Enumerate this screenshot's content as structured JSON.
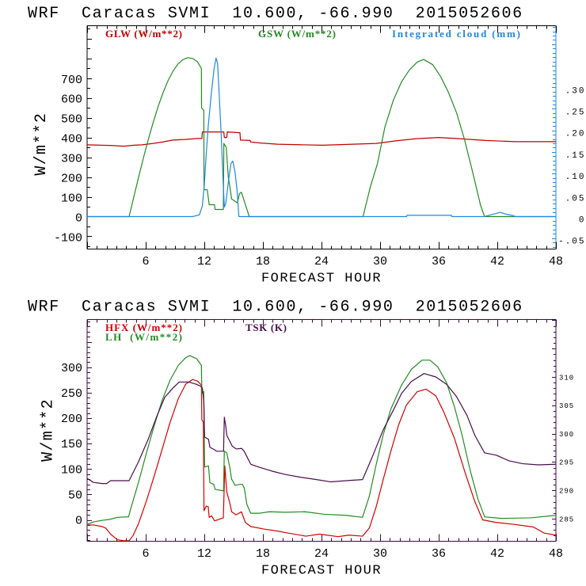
{
  "figure": {
    "background": "#ffffff"
  },
  "chart_data": [
    {
      "type": "line",
      "title": "WRF  Caracas SVMI  10.600, -66.990  2015052606",
      "xlabel": "FORECAST HOUR",
      "ylabel": "W/m**2",
      "xlim": [
        0,
        48
      ],
      "xticks": [
        6,
        12,
        18,
        24,
        30,
        36,
        42,
        48
      ],
      "xticklabels": [
        "6",
        "12",
        "18",
        "24",
        "30",
        "36",
        "42",
        "48"
      ],
      "xmajor": 6,
      "xminor": 1,
      "ylim": [
        -163.5,
        965.5
      ],
      "yticks": [
        -100,
        0,
        100,
        200,
        300,
        400,
        500,
        600,
        700
      ],
      "yticklabels": [
        "-100",
        "0",
        "100",
        "200",
        "300",
        "400",
        "500",
        "600",
        "700"
      ],
      "ymajor": 100,
      "yminor": 50,
      "y2lim": [
        -0.075,
        0.443
      ],
      "y2ticks": [
        -0.05,
        0,
        0.05,
        0.1,
        0.15,
        0.2,
        0.25,
        0.3
      ],
      "y2ticklabels": [
        "-.05",
        "0",
        ".05",
        ".10",
        ".15",
        ".20",
        ".25",
        ".30"
      ],
      "y2major": 0.05,
      "y2minor": 0.01,
      "grid": false,
      "legend": "top",
      "axis_color": "#000000",
      "y2_axis_color": "#1e88e5",
      "series": [
        {
          "name": "GLW (W/m**2)",
          "axis": "left",
          "color": "#bf0000",
          "x": [
            0,
            2.3,
            3.75,
            4.8,
            5.65,
            6.9,
            7.7,
            8.76,
            10.0,
            11.3,
            11.75,
            11.8,
            14.0,
            14.05,
            14.3,
            14.35,
            15.0,
            15.65,
            15.7,
            16.7,
            16.75,
            17.8,
            19.5,
            21.3,
            24.1,
            26.0,
            29.6,
            31.6,
            33.7,
            36.0,
            38.1,
            40.8,
            43.8,
            48
          ],
          "y": [
            363,
            360,
            356,
            361,
            363,
            371,
            377,
            387,
            390,
            395,
            395,
            428,
            428,
            400,
            400,
            428,
            426,
            424,
            387,
            385,
            377,
            372,
            366,
            364,
            361,
            364,
            370,
            383,
            394,
            400,
            394,
            385,
            379,
            379
          ]
        },
        {
          "name": "GSW (W/m**2)",
          "axis": "left",
          "color": "#228b22",
          "x": [
            0,
            4.3,
            4.8,
            5.3,
            5.8,
            6.3,
            6.8,
            7.3,
            7.8,
            8.3,
            8.8,
            9.3,
            9.8,
            10.3,
            10.8,
            11.3,
            11.7,
            11.72,
            11.95,
            11.97,
            12.3,
            12.5,
            13.05,
            13.1,
            13.95,
            14.0,
            14.25,
            14.45,
            14.6,
            14.8,
            15.4,
            15.6,
            15.8,
            16.6,
            28.25,
            29.0,
            29.73,
            30.5,
            31.35,
            32.2,
            33.0,
            33.8,
            34.46,
            35.4,
            36.2,
            37.0,
            37.85,
            38.65,
            39.46,
            40.3,
            40.7,
            48
          ],
          "y": [
            0,
            0,
            103,
            205,
            303,
            396,
            482,
            561,
            630,
            689,
            736,
            772,
            794,
            804,
            800,
            783,
            750,
            550,
            537,
            136,
            136,
            60,
            60,
            36,
            36,
            370,
            350,
            203,
            156,
            89,
            69,
            116,
            123,
            0,
            0,
            150,
            268,
            455,
            588,
            682,
            742,
            782,
            795,
            768,
            708,
            628,
            522,
            388,
            228,
            54,
            0,
            0
          ]
        },
        {
          "name": "Integrated cloud (mm)",
          "axis": "right",
          "color": "#1e88e5",
          "x": [
            0,
            10.8,
            11.5,
            11.8,
            12.0,
            12.2,
            12.4,
            12.7,
            13.0,
            13.2,
            13.36,
            13.5,
            13.73,
            13.92,
            14.05,
            14.2,
            14.46,
            14.73,
            14.92,
            15.14,
            15.35,
            15.54,
            32.7,
            32.75,
            37.3,
            37.35,
            40.7,
            41.3,
            42.0,
            42.3,
            42.8,
            43.7,
            43.8,
            48
          ],
          "y": [
            0,
            0,
            0.004,
            0.025,
            0.074,
            0.147,
            0.209,
            0.282,
            0.343,
            0.368,
            0.356,
            0.294,
            0.19,
            0.086,
            0.022,
            0.031,
            0.08,
            0.123,
            0.129,
            0.104,
            0.062,
            0,
            0,
            0.003,
            0.003,
            0,
            0,
            0.004,
            0.008,
            0.01,
            0.006,
            0.002,
            0,
            0
          ]
        }
      ]
    },
    {
      "type": "line",
      "title": "WRF  Caracas SVMI  10.600, -66.990  2015052606",
      "xlabel": "FORECAST HOUR",
      "ylabel": "W/m**2",
      "xlim": [
        0,
        48
      ],
      "xticks": [
        6,
        12,
        18,
        24,
        30,
        36,
        42,
        48
      ],
      "xticklabels": [
        "6",
        "12",
        "18",
        "24",
        "30",
        "36",
        "42",
        "48"
      ],
      "xmajor": 6,
      "xminor": 1,
      "ylim": [
        -41.7,
        394.2
      ],
      "yticks": [
        0,
        50,
        100,
        150,
        200,
        250,
        300
      ],
      "yticklabels": [
        "0",
        "50",
        "100",
        "150",
        "200",
        "250",
        "300"
      ],
      "ymajor": 50,
      "yminor": 10,
      "y2lim": [
        281.05,
        320.15
      ],
      "y2ticks": [
        285,
        290,
        295,
        300,
        305,
        310
      ],
      "y2ticklabels": [
        "285",
        "290",
        "295",
        "300",
        "305",
        "310"
      ],
      "y2major": 5,
      "y2minor": 1,
      "grid": false,
      "legend": "top-left",
      "axis_color": "#3c0a3c",
      "y2_axis_color": "#3c0a3c",
      "series": [
        {
          "name": "HFX (W/m**2)",
          "axis": "left",
          "color": "#d40000",
          "x": [
            0,
            0.65,
            1.5,
            1.9,
            2.4,
            3.1,
            3.75,
            4.3,
            4.7,
            5.25,
            6.05,
            6.9,
            7.7,
            8.5,
            9.35,
            10.1,
            10.8,
            11.3,
            11.7,
            11.75,
            11.9,
            11.97,
            12.2,
            12.4,
            12.5,
            12.75,
            13.05,
            13.5,
            13.95,
            14.1,
            14.3,
            14.6,
            14.8,
            15.25,
            15.8,
            16.2,
            16.75,
            18.1,
            19.5,
            20.3,
            22.4,
            23.8,
            25.7,
            26.8,
            28.2,
            28.9,
            29.6,
            30.3,
            31.1,
            31.9,
            32.7,
            33.8,
            34.7,
            35.7,
            36.5,
            37.6,
            38.7,
            39.7,
            40.5,
            41.9,
            43.8,
            45.7,
            46.8,
            48
          ],
          "y": [
            -10,
            -10,
            -13,
            -16,
            -28,
            -39,
            -41,
            -41,
            -31,
            -8,
            36,
            88,
            140,
            192,
            239,
            267,
            276,
            273,
            265,
            197,
            192,
            18,
            27,
            26,
            5,
            8,
            -2,
            1,
            4,
            106,
            55,
            34,
            16,
            10,
            16,
            -5,
            -13,
            -18,
            -22,
            -25,
            -32,
            -28,
            -33,
            -30,
            -32,
            -16,
            26,
            78,
            135,
            187,
            226,
            252,
            257,
            244,
            213,
            161,
            93,
            36,
            0,
            -5,
            -9,
            -14,
            -26,
            -30
          ]
        },
        {
          "name": "LH  (W/m**2)",
          "axis": "left",
          "color": "#228b22",
          "x": [
            0,
            0.65,
            1.5,
            2.3,
            3.1,
            4.25,
            4.45,
            5.25,
            6.05,
            6.9,
            7.7,
            8.5,
            9.35,
            10.1,
            10.5,
            11.2,
            11.7,
            11.75,
            11.94,
            12.03,
            12.43,
            12.57,
            12.97,
            13.1,
            13.97,
            14.05,
            14.3,
            14.6,
            14.8,
            15.15,
            15.7,
            15.9,
            16.1,
            16.35,
            16.75,
            17.6,
            18.65,
            20.3,
            22.3,
            24.3,
            26.5,
            28.2,
            28.9,
            29.6,
            30.3,
            31.1,
            32.2,
            33.2,
            34.3,
            35.1,
            35.9,
            36.8,
            37.6,
            38.4,
            39.2,
            40.0,
            40.7,
            42.4,
            45.4,
            48
          ],
          "y": [
            -9,
            -4,
            -1,
            1,
            5,
            6,
            21,
            73,
            130,
            187,
            236,
            275,
            304,
            319,
            323,
            317,
            304,
            249,
            252,
            104,
            106,
            73,
            70,
            60,
            57,
            135,
            132,
            104,
            80,
            68,
            70,
            70,
            62,
            31,
            13,
            13,
            16,
            15,
            16,
            11,
            9,
            5,
            47,
            109,
            166,
            218,
            265,
            296,
            314,
            314,
            301,
            270,
            223,
            166,
            99,
            42,
            6,
            3,
            4,
            9
          ]
        },
        {
          "name": "TSK (K)",
          "axis": "right",
          "color": "#4b0c4b",
          "x": [
            0,
            0.65,
            1.5,
            2.0,
            2.4,
            4.3,
            5.25,
            6.3,
            7.1,
            7.95,
            8.76,
            9.43,
            10.4,
            11.2,
            11.7,
            11.8,
            11.95,
            12.03,
            12.43,
            12.57,
            13.1,
            13.25,
            13.97,
            14.05,
            14.2,
            14.3,
            14.6,
            14.86,
            15.27,
            15.81,
            16.08,
            16.49,
            16.76,
            17.57,
            18.9,
            20.3,
            21.9,
            23.5,
            24.9,
            26.5,
            28.2,
            29.2,
            30.3,
            31.4,
            32.2,
            33.2,
            34.5,
            35.7,
            36.8,
            37.8,
            38.9,
            39.7,
            40.7,
            41.9,
            43.2,
            44.6,
            46.2,
            48
          ],
          "y": [
            292.1,
            291.4,
            291.2,
            291.2,
            291.7,
            291.7,
            295.0,
            299.2,
            302.9,
            306.4,
            308.0,
            309.1,
            309.1,
            308.7,
            308.3,
            308.0,
            305.7,
            299.4,
            299.0,
            297.6,
            297.1,
            296.9,
            296.9,
            302.9,
            301.3,
            299.7,
            298.7,
            297.8,
            297.3,
            297.4,
            296.9,
            295.5,
            294.6,
            294.1,
            293.4,
            292.8,
            292.3,
            291.9,
            291.5,
            291.7,
            291.9,
            295.9,
            300.6,
            304.3,
            307.1,
            309.2,
            310.6,
            310.0,
            308.7,
            306.6,
            303.2,
            299.7,
            296.6,
            296.2,
            295.2,
            294.7,
            294.5,
            294.6
          ]
        }
      ]
    }
  ]
}
